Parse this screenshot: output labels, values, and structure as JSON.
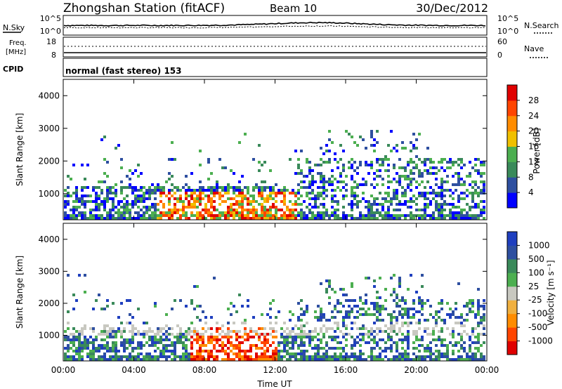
{
  "header": {
    "station": "Zhongshan Station (fitACF)",
    "beam": "Beam 10",
    "date": "30/Dec/2012"
  },
  "top_panel": {
    "left_label": "N.Sky",
    "right_label": "N.Search",
    "left_ticks": [
      "10^5",
      "10^0"
    ],
    "right_ticks": [
      "10^5",
      "10^0"
    ]
  },
  "freq_panel": {
    "left_label_line1": "Freq.",
    "left_label_line2": "[MHz]",
    "right_label": "Nave",
    "left_ticks": [
      "18",
      "8"
    ],
    "right_ticks": [
      "60",
      "0"
    ]
  },
  "cpid": {
    "label": "CPID",
    "mode_text": "normal (fast stereo) 153"
  },
  "colors": {
    "power_scale": [
      "#0000ff",
      "#2e4fa0",
      "#3a8a5a",
      "#4caf50",
      "#f0c000",
      "#ff8c00",
      "#ff4500",
      "#e00000"
    ],
    "velocity_scale": [
      "#e00000",
      "#ff4500",
      "#ff8c00",
      "#f0b040",
      "#c8c8c0",
      "#4caf50",
      "#3a8a5a",
      "#2e4fa0",
      "#1f3fbf"
    ]
  },
  "chart_data": [
    {
      "type": "heatmap",
      "ylabel": "Slant Range [km]",
      "xlabel": "",
      "yticks": [
        "1000",
        "2000",
        "3000",
        "4000"
      ],
      "ylim": [
        200,
        4500
      ],
      "xticks": [],
      "colorbar": {
        "label": "Power [dB]",
        "ticks": [
          "4",
          "8",
          "12",
          "16",
          "20",
          "24",
          "28"
        ],
        "range": [
          0,
          32
        ]
      }
    },
    {
      "type": "heatmap",
      "ylabel": "Slant Range [km]",
      "xlabel": "Time UT",
      "yticks": [
        "1000",
        "2000",
        "3000",
        "4000"
      ],
      "ylim": [
        200,
        4500
      ],
      "xticks": [
        "00:00",
        "04:00",
        "08:00",
        "12:00",
        "16:00",
        "20:00",
        "00:00"
      ],
      "colorbar": {
        "label": "Velocity [m s⁻¹]",
        "ticks": [
          "-1000",
          "-500",
          "-100",
          "-25",
          "25",
          "100",
          "500",
          "1000"
        ],
        "range": [
          -1200,
          1200
        ]
      }
    }
  ]
}
